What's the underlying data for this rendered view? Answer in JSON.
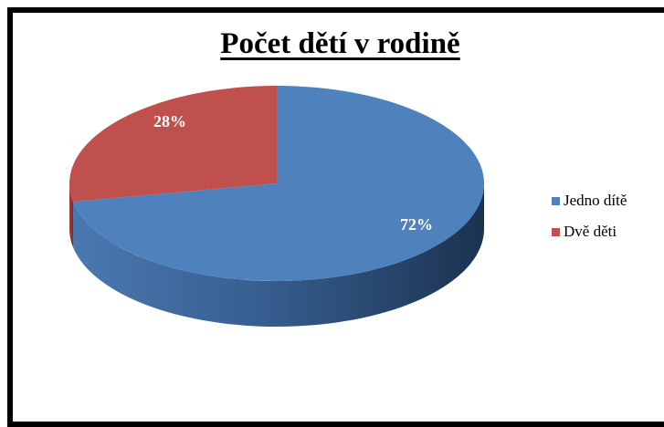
{
  "chart_data": {
    "type": "pie",
    "title": "Počet dětí v rodině",
    "categories": [
      "Jedno dítě",
      "Dvě děti"
    ],
    "values": [
      72,
      28
    ],
    "labels": [
      "72%",
      "28%"
    ],
    "colors": [
      "#4f81bd",
      "#c0504d"
    ],
    "legend_position": "right",
    "style": "3d"
  }
}
